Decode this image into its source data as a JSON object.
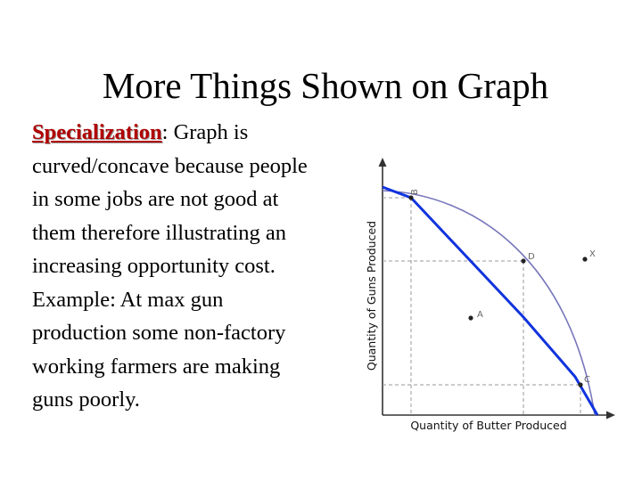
{
  "slide": {
    "title": "More Things Shown on Graph",
    "term": "Specialization",
    "term_suffix": ":  Graph is",
    "body_lines": [
      "curved/concave because people",
      "in some jobs are not good at",
      "them therefore illustrating an",
      "increasing opportunity cost.",
      "Example:  At max gun",
      "production some non-factory",
      "working farmers are making",
      "guns poorly."
    ]
  },
  "graph": {
    "y_axis_label": "Quantity of Guns Produced",
    "x_axis_label": "Quantity of Butter Produced",
    "points": {
      "b": "B",
      "d": "D",
      "x": "X",
      "a": "A",
      "c": "C"
    },
    "colors": {
      "curve": "#7777bb",
      "line": "#1133dd",
      "axis": "#333333",
      "grid": "#999999",
      "term": "#b00000"
    }
  }
}
